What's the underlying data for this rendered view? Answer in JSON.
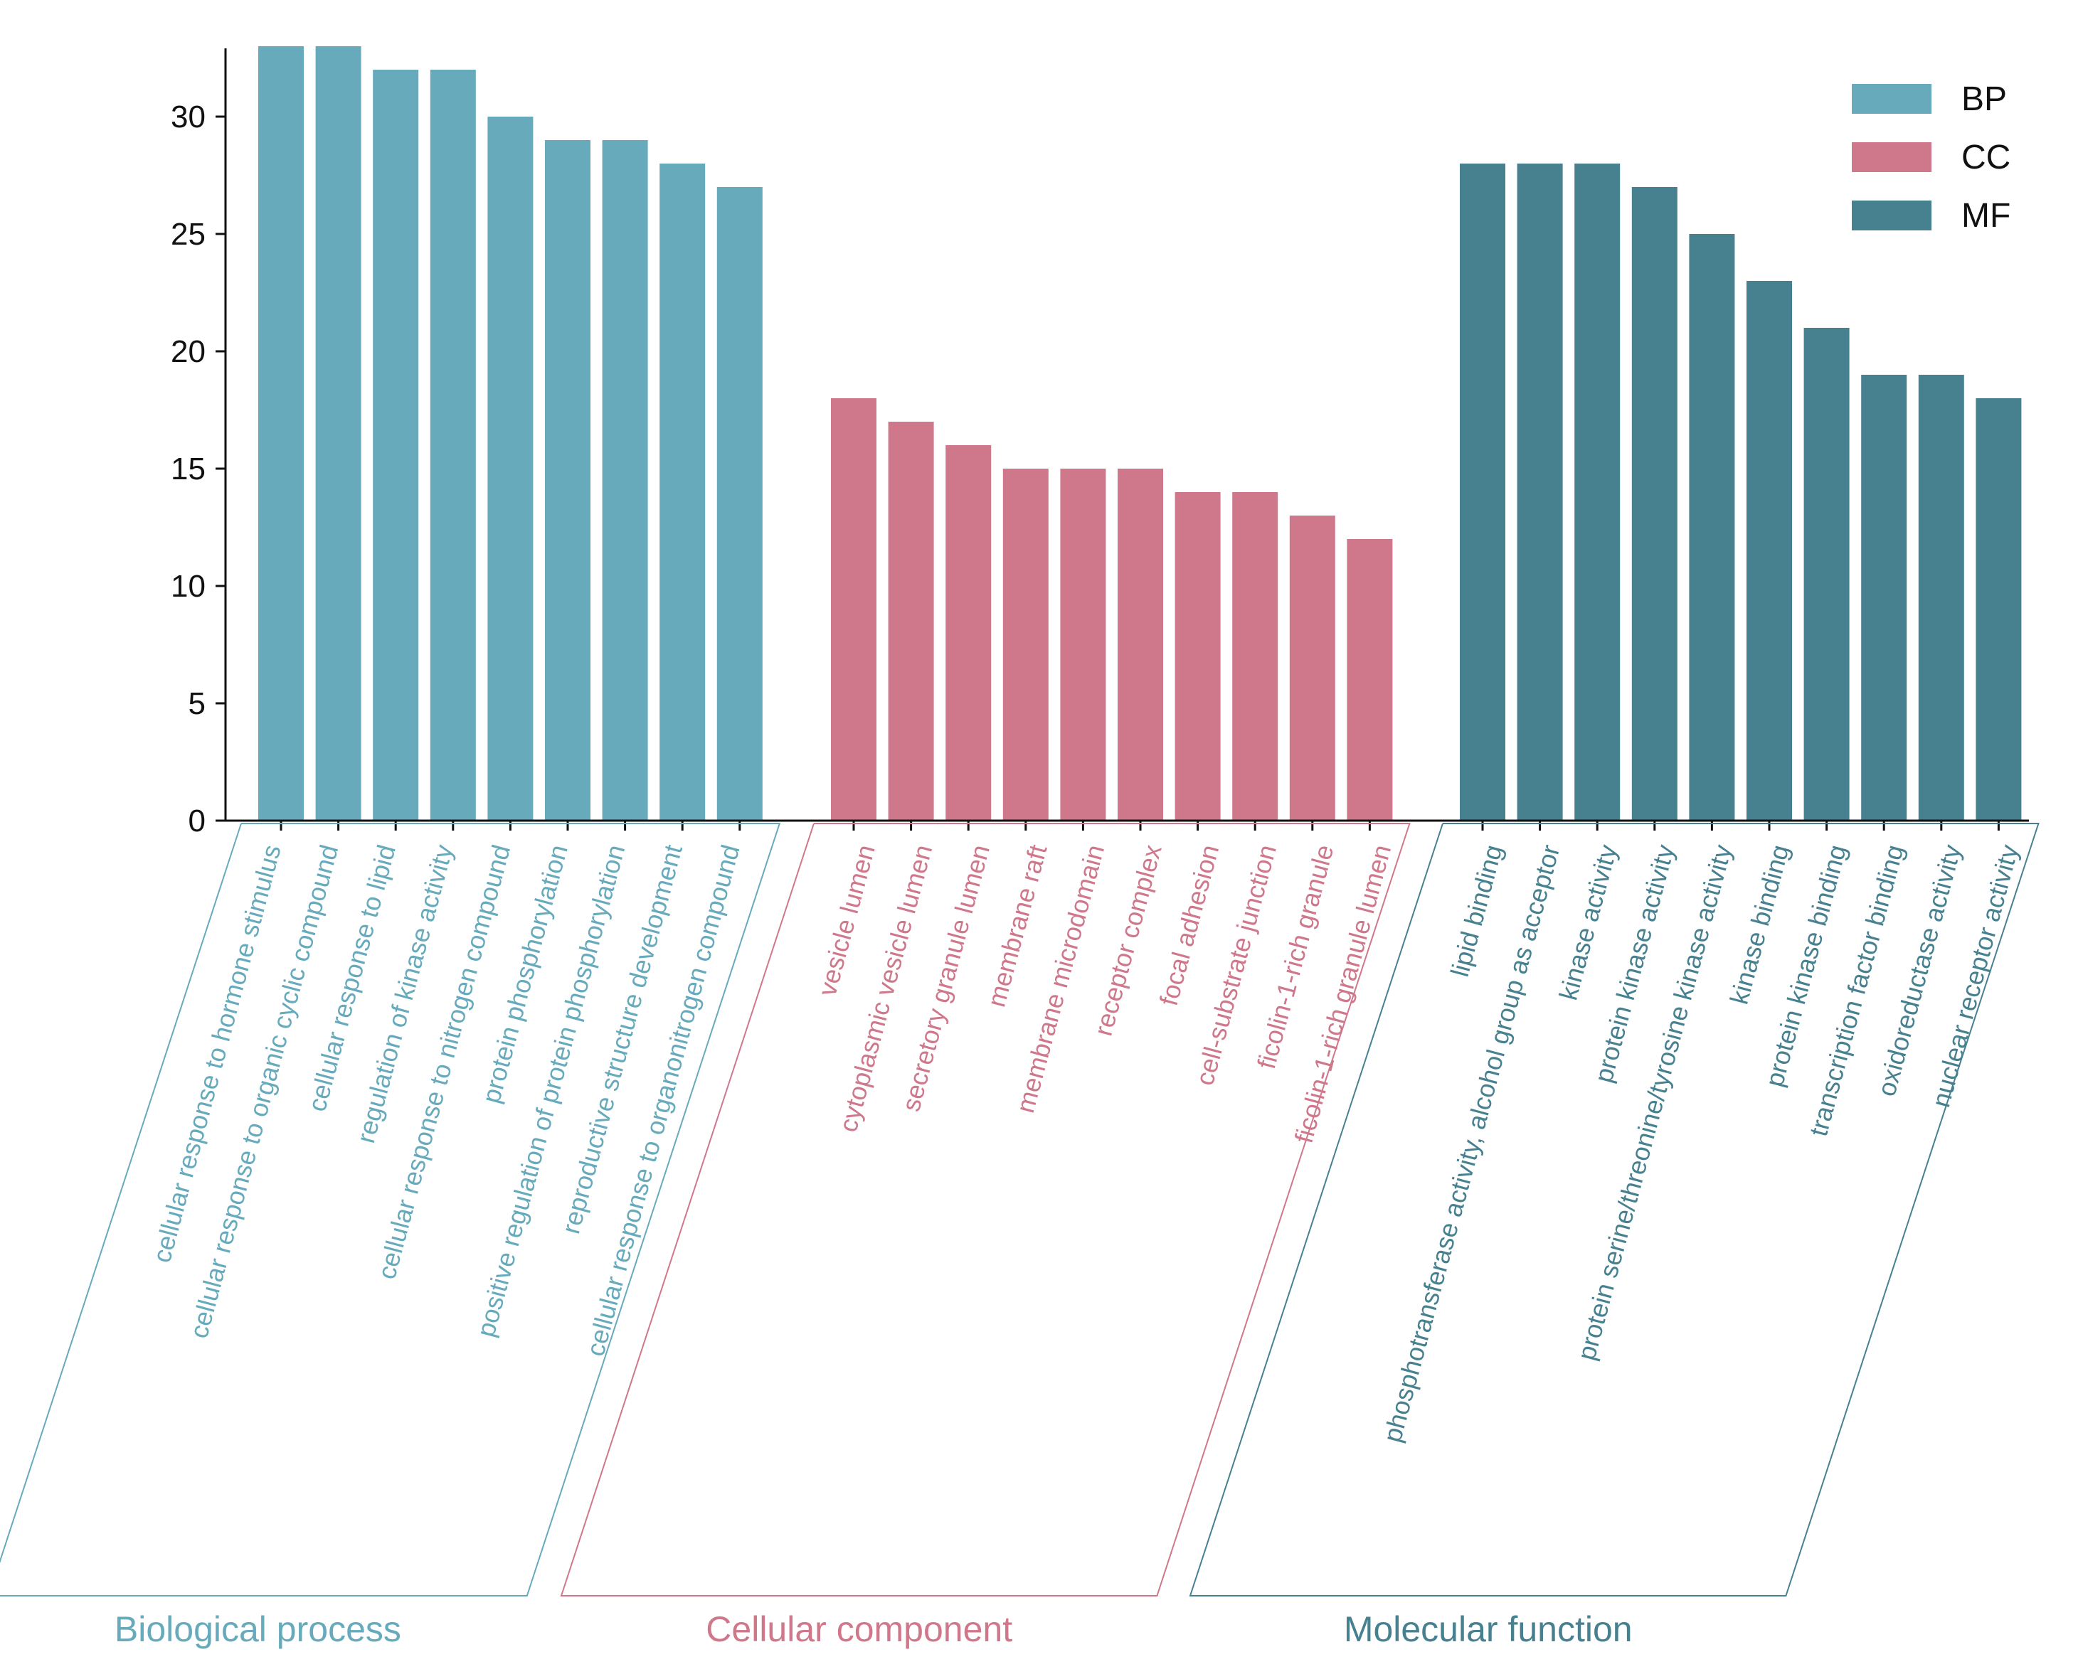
{
  "colors": {
    "BP": "#66aabb",
    "CC": "#cf778b",
    "MF": "#478190",
    "axis": "#111111"
  },
  "chart_data": {
    "type": "bar",
    "title": "",
    "xlabel": "",
    "ylabel": "",
    "ylim": [
      0,
      33
    ],
    "yticks": [
      0,
      5,
      10,
      15,
      20,
      25,
      30
    ],
    "grid": false,
    "legend": {
      "position": "top-right",
      "entries": [
        "BP",
        "CC",
        "MF"
      ]
    },
    "groups": [
      {
        "key": "BP",
        "name": "Biological process",
        "categories": [
          "cellular response to hormone stimulus",
          "cellular response to organic cyclic compound",
          "cellular response to lipid",
          "regulation of kinase activity",
          "cellular response to nitrogen compound",
          "protein phosphorylation",
          "positive regulation of protein phosphorylation",
          "reproductive structure development",
          "cellular response to organonitrogen compound"
        ],
        "values": [
          33,
          33,
          32,
          32,
          30,
          29,
          29,
          28,
          27
        ]
      },
      {
        "key": "CC",
        "name": "Cellular component",
        "categories": [
          "vesicle lumen",
          "cytoplasmic vesicle lumen",
          "secretory granule lumen",
          "membrane raft",
          "membrane microdomain",
          "receptor complex",
          "focal adhesion",
          "cell-substrate junction",
          "ficolin-1-rich granule",
          "ficolin-1-rich granule lumen"
        ],
        "values": [
          18,
          17,
          16,
          15,
          15,
          15,
          14,
          14,
          13,
          12
        ]
      },
      {
        "key": "MF",
        "name": "Molecular function",
        "categories": [
          "lipid binding",
          "phosphotransferase activity, alcohol group as acceptor",
          "kinase activity",
          "protein kinase activity",
          "protein serine/threonine/tyrosine kinase activity",
          "kinase binding",
          "protein kinase binding",
          "transcription factor binding",
          "oxidoreductase activity",
          "nuclear receptor activity"
        ],
        "values": [
          28,
          28,
          28,
          27,
          25,
          23,
          21,
          19,
          19,
          18
        ]
      }
    ]
  }
}
